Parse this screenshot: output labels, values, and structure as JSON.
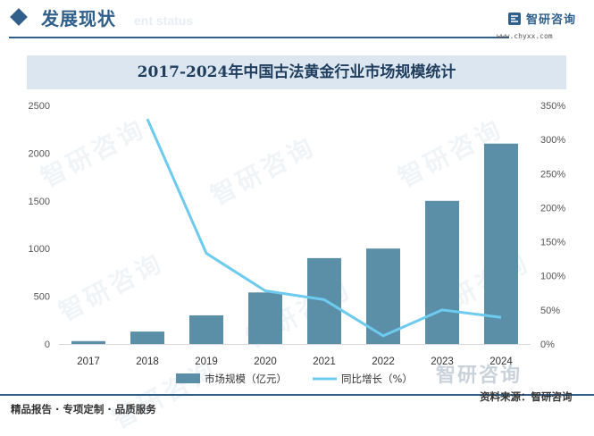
{
  "header": {
    "section_title": "发展现状",
    "section_subtitle": "ent status",
    "logo_text": "智研咨询",
    "logo_url": "www.chyxx.com"
  },
  "footer": {
    "left_text": "精品报告 · 专项定制 · 品质服务",
    "source_text": "资料来源：智研咨询",
    "watermark_logo": "智研咨询"
  },
  "watermark_text": "智研咨询",
  "colors": {
    "bar": "#5b8fa8",
    "line": "#6ccbee",
    "brand": "#2f5f8a",
    "title_band": "#dbe6f1"
  },
  "chart_data": {
    "type": "bar",
    "title": "2017-2024年中国古法黄金行业市场规模统计",
    "categories": [
      "2017",
      "2018",
      "2019",
      "2020",
      "2021",
      "2022",
      "2023",
      "2024"
    ],
    "series": [
      {
        "name": "市场规模（亿元）",
        "type": "bar",
        "axis": "left",
        "values": [
          30,
          130,
          300,
          540,
          900,
          1000,
          1500,
          2100
        ]
      },
      {
        "name": "同比增长（%）",
        "type": "line",
        "axis": "right",
        "values": [
          null,
          330,
          133,
          78,
          65,
          12,
          50,
          39
        ]
      }
    ],
    "y_left": {
      "min": 0,
      "max": 2500,
      "ticks": [
        "0",
        "500",
        "1000",
        "1500",
        "2000",
        "2500"
      ]
    },
    "y_right": {
      "min": 0,
      "max": 350,
      "ticks": [
        "0%",
        "50%",
        "100%",
        "150%",
        "200%",
        "250%",
        "300%",
        "350%"
      ]
    },
    "grid": false,
    "legend_position": "bottom"
  }
}
